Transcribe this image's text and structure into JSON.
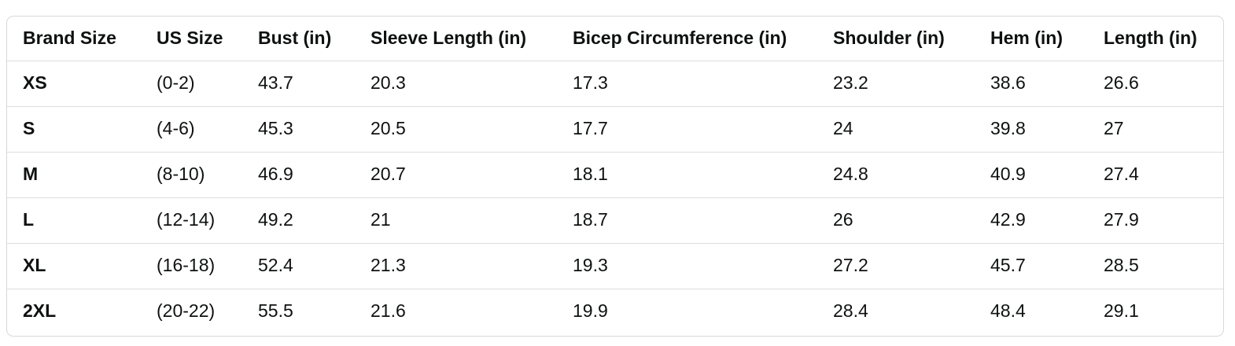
{
  "size_chart": {
    "columns": [
      {
        "id": "brand-size",
        "label": "Brand Size"
      },
      {
        "id": "us-size",
        "label": "US Size"
      },
      {
        "id": "bust",
        "label": "Bust (in)"
      },
      {
        "id": "sleeve-length",
        "label": "Sleeve Length (in)"
      },
      {
        "id": "bicep-circumference",
        "label": "Bicep Circumference (in)"
      },
      {
        "id": "shoulder",
        "label": "Shoulder (in)"
      },
      {
        "id": "hem",
        "label": "Hem (in)"
      },
      {
        "id": "length",
        "label": "Length (in)"
      }
    ],
    "rows": [
      [
        "XS",
        "(0-2)",
        "43.7",
        "20.3",
        "17.3",
        "23.2",
        "38.6",
        "26.6"
      ],
      [
        "S",
        "(4-6)",
        "45.3",
        "20.5",
        "17.7",
        "24",
        "39.8",
        "27"
      ],
      [
        "M",
        "(8-10)",
        "46.9",
        "20.7",
        "18.1",
        "24.8",
        "40.9",
        "27.4"
      ],
      [
        "L",
        "(12-14)",
        "49.2",
        "21",
        "18.7",
        "26",
        "42.9",
        "27.9"
      ],
      [
        "XL",
        "(16-18)",
        "52.4",
        "21.3",
        "19.3",
        "27.2",
        "45.7",
        "28.5"
      ],
      [
        "2XL",
        "(20-22)",
        "55.5",
        "21.6",
        "19.9",
        "28.4",
        "48.4",
        "29.1"
      ]
    ],
    "colors": {
      "text": "#0F1111",
      "card_border": "#D5D9D9",
      "row_divider": "#DDDDDD",
      "background": "#FFFFFF"
    }
  }
}
